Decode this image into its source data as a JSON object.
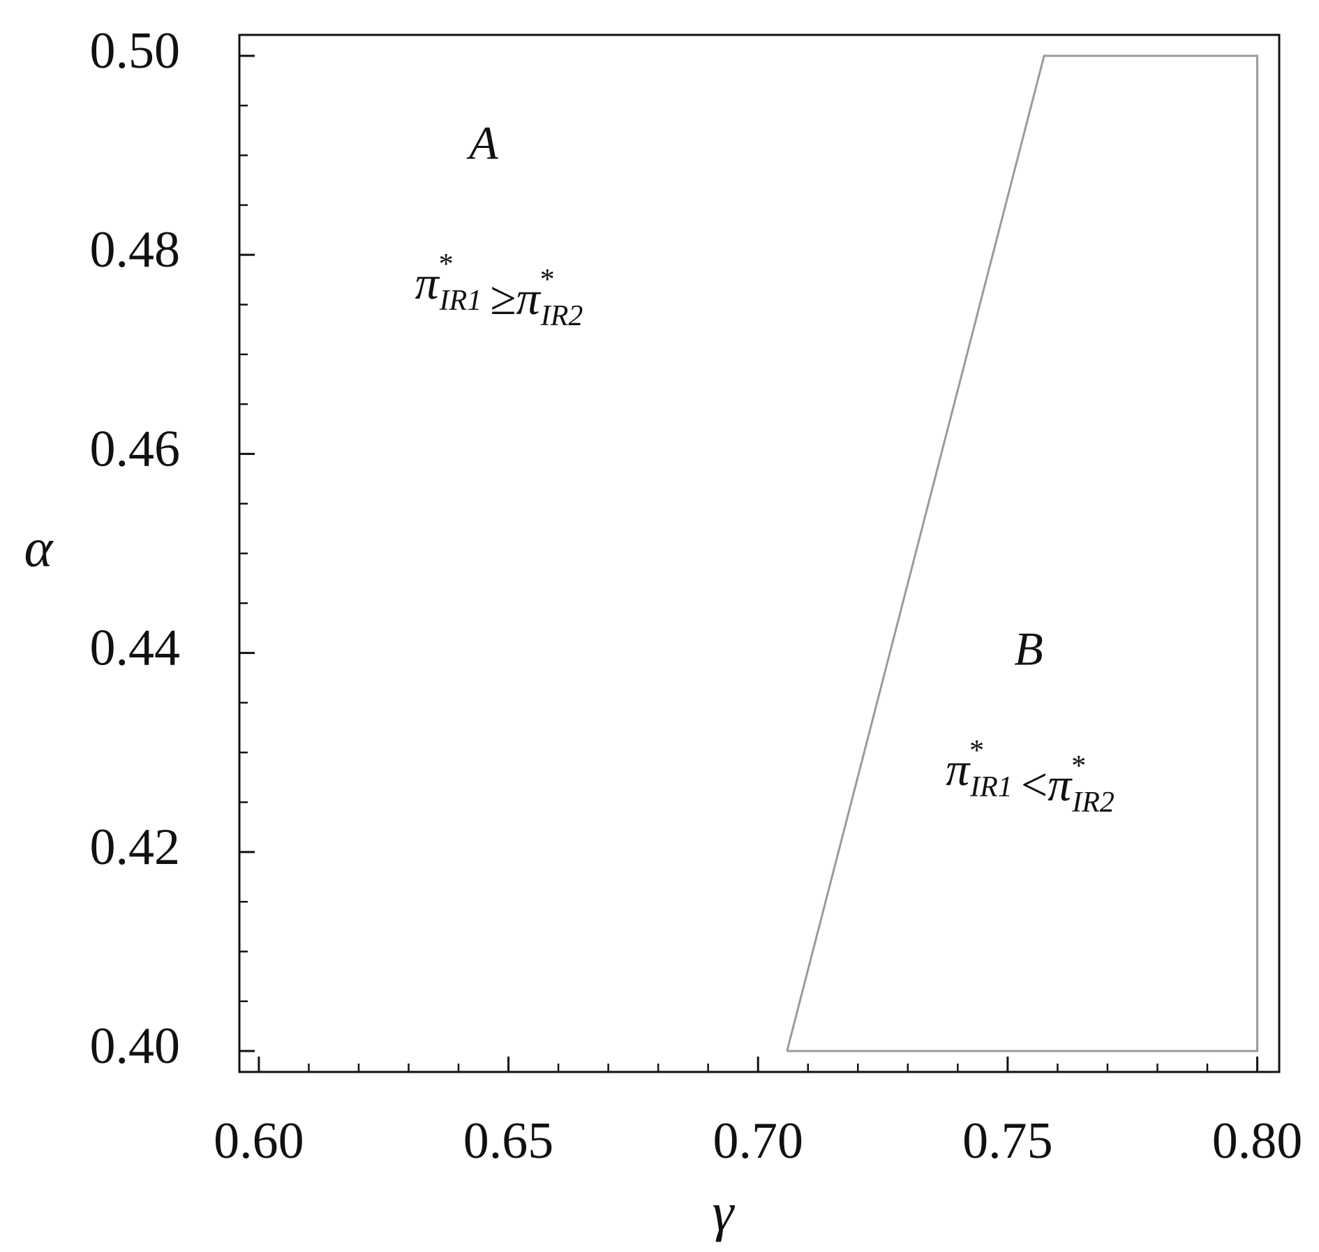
{
  "chart_data": {
    "type": "region",
    "x_label": "γ",
    "y_label": "α",
    "xlim": [
      0.5961,
      0.8044
    ],
    "ylim": [
      0.3979,
      0.5021
    ],
    "xticks": [
      {
        "value": 0.6,
        "label": "0.60"
      },
      {
        "value": 0.65,
        "label": "0.65"
      },
      {
        "value": 0.7,
        "label": "0.70"
      },
      {
        "value": 0.75,
        "label": "0.75"
      },
      {
        "value": 0.8,
        "label": "0.80"
      }
    ],
    "yticks": [
      {
        "value": 0.4,
        "label": "0.40"
      },
      {
        "value": 0.42,
        "label": "0.42"
      },
      {
        "value": 0.44,
        "label": "0.44"
      },
      {
        "value": 0.46,
        "label": "0.46"
      },
      {
        "value": 0.48,
        "label": "0.48"
      },
      {
        "value": 0.5,
        "label": "0.50"
      }
    ],
    "xminorticks": [
      0.61,
      0.62,
      0.63,
      0.64,
      0.66,
      0.67,
      0.68,
      0.69,
      0.71,
      0.72,
      0.73,
      0.74,
      0.76,
      0.77,
      0.78,
      0.79
    ],
    "yminorticks": [
      0.405,
      0.41,
      0.415,
      0.425,
      0.43,
      0.435,
      0.445,
      0.45,
      0.455,
      0.465,
      0.47,
      0.475,
      0.485,
      0.49,
      0.495
    ],
    "region": {
      "color": "#9a9a9a",
      "x": [
        0.7058,
        0.7573,
        0.8,
        0.8,
        0.7058
      ],
      "y": [
        0.4,
        0.5,
        0.5,
        0.4,
        0.4
      ]
    },
    "regions": [
      {
        "name": "A",
        "lhs": {
          "base": "π",
          "sup": "*",
          "sub": "IR1"
        },
        "op": "≥",
        "rhs": {
          "base": "π",
          "sup": "*",
          "sub": "IR2"
        }
      },
      {
        "name": "B",
        "lhs": {
          "base": "π",
          "sup": "*",
          "sub": "IR1"
        },
        "op": "<",
        "rhs": {
          "base": "π",
          "sup": "*",
          "sub": "IR2"
        }
      }
    ]
  }
}
